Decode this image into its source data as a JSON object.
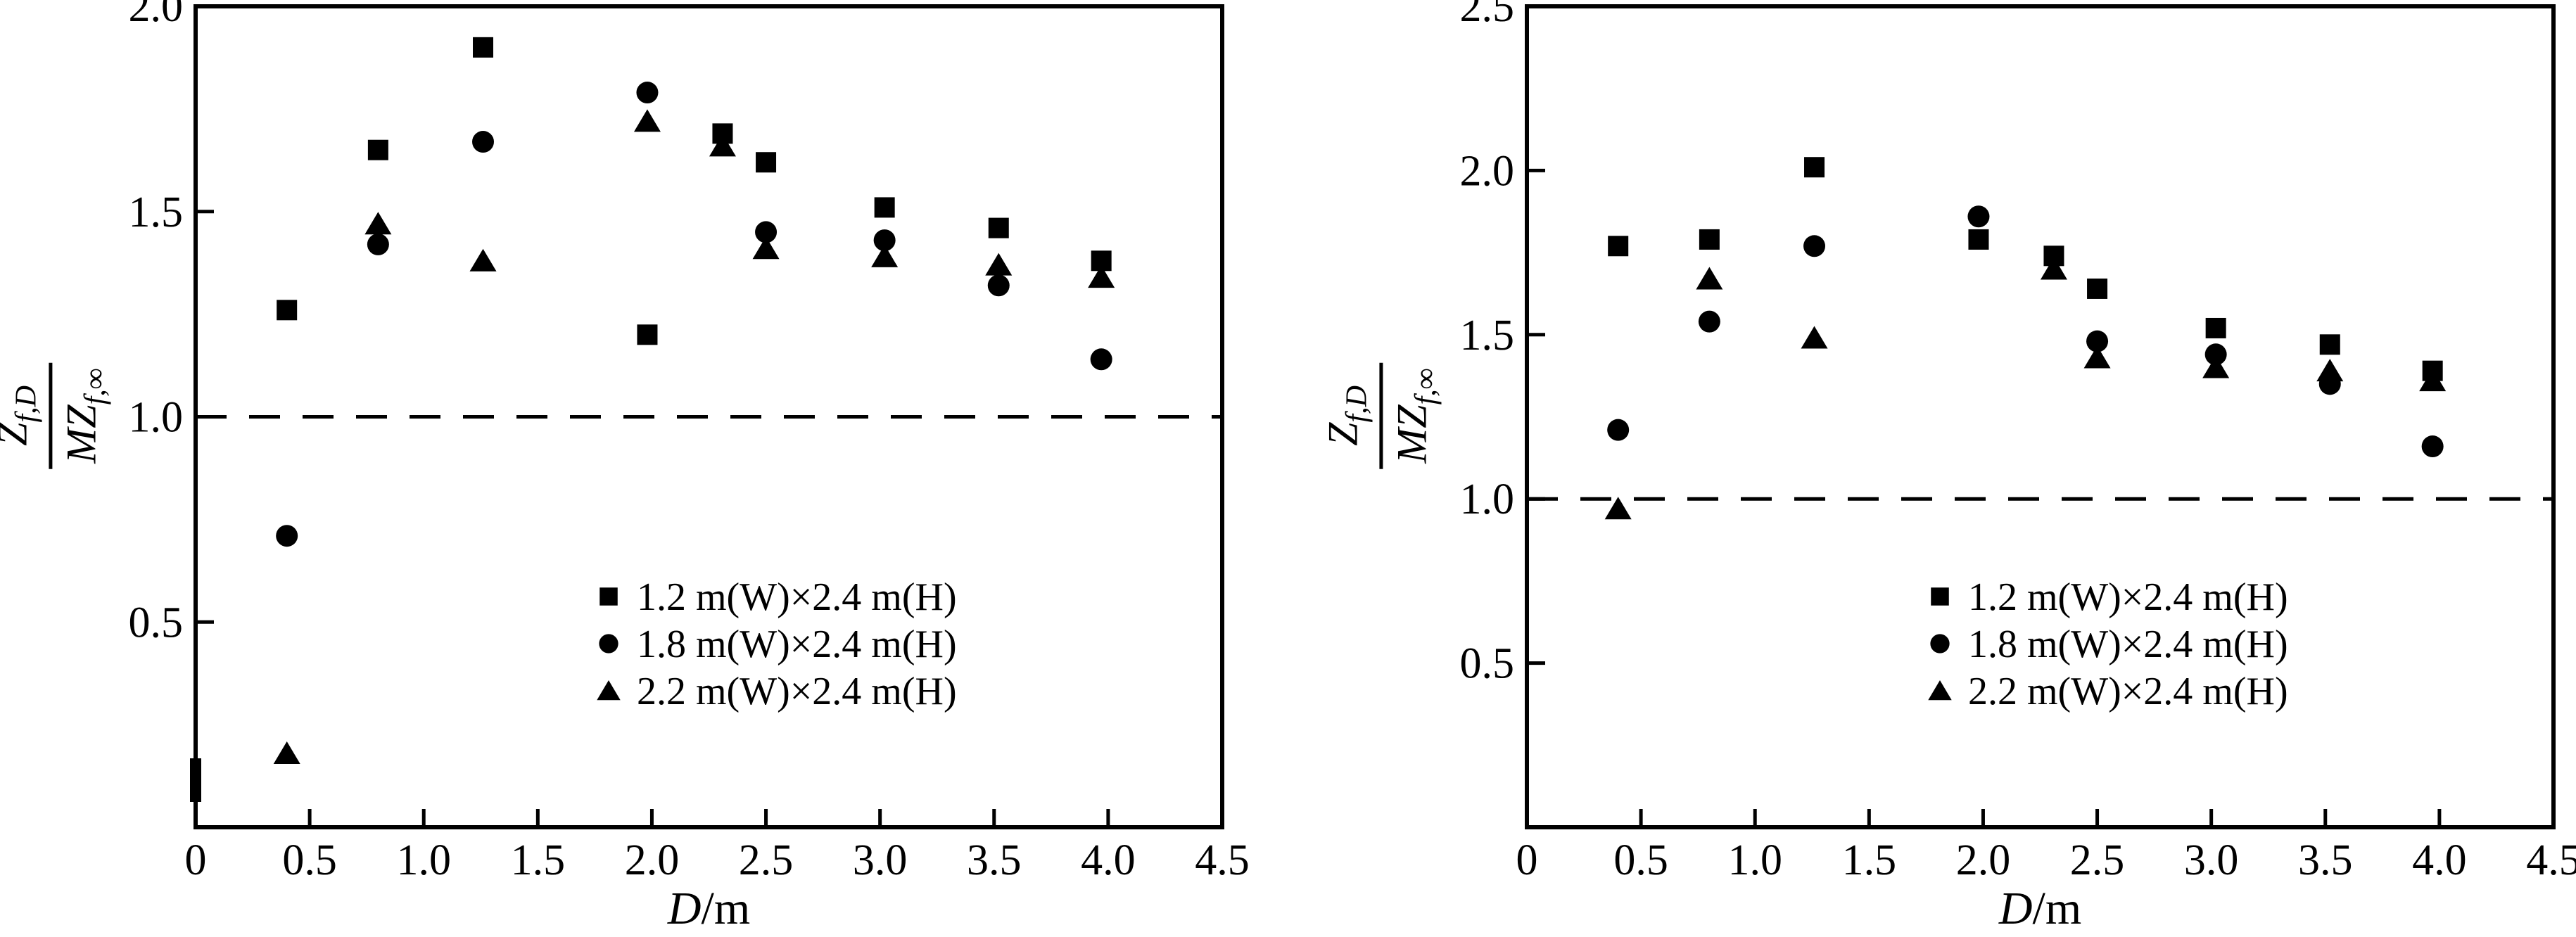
{
  "figure": {
    "background": "#ffffff",
    "marker_color": "#000000",
    "reference_line_style": "dashed"
  },
  "chart_data": [
    {
      "type": "scatter",
      "panel": "left",
      "xlabel": "D/m",
      "xlabel_parts": {
        "var": "D",
        "unit": "/m"
      },
      "ylabel": "Z_f,D / (M Z_f,inf)",
      "ylabel_parts": {
        "numerator_main": "Z",
        "numerator_sub": "f,D",
        "denominator_main": "MZ",
        "denominator_sub": "f,∞"
      },
      "xlim": [
        0,
        4.5
      ],
      "ylim": [
        0,
        2.0
      ],
      "xtick_values": [
        0,
        0.5,
        1.0,
        1.5,
        2.0,
        2.5,
        3.0,
        3.5,
        4.0,
        4.5
      ],
      "xtick_labels": [
        "0",
        "0.5",
        "1.0",
        "1.5",
        "2.0",
        "2.5",
        "3.0",
        "3.5",
        "4.0",
        "4.5"
      ],
      "ytick_values": [
        0.5,
        1.0,
        1.5,
        2.0
      ],
      "ytick_labels": [
        "0.5",
        "1.0",
        "1.5",
        "2.0"
      ],
      "reference_line_y": 1.0,
      "grid": false,
      "legend_position": "lower-center",
      "axis_smudge": true,
      "series": [
        {
          "name": "1.2 m(W)×2.4 m(H)",
          "marker": "square",
          "color": "#000000",
          "points": [
            [
              0.4,
              1.26
            ],
            [
              0.8,
              1.65
            ],
            [
              1.26,
              1.9
            ],
            [
              1.98,
              1.2
            ],
            [
              2.31,
              1.69
            ],
            [
              2.5,
              1.62
            ],
            [
              3.02,
              1.51
            ],
            [
              3.52,
              1.46
            ],
            [
              3.97,
              1.38
            ]
          ]
        },
        {
          "name": "1.8 m(W)×2.4 m(H)",
          "marker": "circle",
          "color": "#000000",
          "points": [
            [
              0.4,
              0.71
            ],
            [
              0.8,
              1.42
            ],
            [
              1.26,
              1.67
            ],
            [
              1.98,
              1.79
            ],
            [
              2.5,
              1.45
            ],
            [
              3.02,
              1.43
            ],
            [
              3.52,
              1.32
            ],
            [
              3.97,
              1.14
            ]
          ]
        },
        {
          "name": "2.2 m(W)×2.4 m(H)",
          "marker": "triangle",
          "color": "#000000",
          "points": [
            [
              0.4,
              0.18
            ],
            [
              0.8,
              1.47
            ],
            [
              1.26,
              1.38
            ],
            [
              1.98,
              1.72
            ],
            [
              2.31,
              1.66
            ],
            [
              2.5,
              1.41
            ],
            [
              3.02,
              1.39
            ],
            [
              3.52,
              1.37
            ],
            [
              3.97,
              1.34
            ]
          ]
        }
      ]
    },
    {
      "type": "scatter",
      "panel": "right",
      "xlabel": "D/m",
      "xlabel_parts": {
        "var": "D",
        "unit": "/m"
      },
      "ylabel": "Z_f,D / (M Z_f,inf)",
      "ylabel_parts": {
        "numerator_main": "Z",
        "numerator_sub": "f,D",
        "denominator_main": "MZ",
        "denominator_sub": "f,∞"
      },
      "xlim": [
        0,
        4.5
      ],
      "ylim": [
        0,
        2.5
      ],
      "xtick_values": [
        0,
        0.5,
        1.0,
        1.5,
        2.0,
        2.5,
        3.0,
        3.5,
        4.0,
        4.5
      ],
      "xtick_labels": [
        "0",
        "0.5",
        "1.0",
        "1.5",
        "2.0",
        "2.5",
        "3.0",
        "3.5",
        "4.0",
        "4.5"
      ],
      "ytick_values": [
        0.5,
        1.0,
        1.5,
        2.0,
        2.5
      ],
      "ytick_labels": [
        "0.5",
        "1.0",
        "1.5",
        "2.0",
        "2.5"
      ],
      "reference_line_y": 1.0,
      "grid": false,
      "legend_position": "lower-center",
      "axis_smudge": false,
      "series": [
        {
          "name": "1.2 m(W)×2.4 m(H)",
          "marker": "square",
          "color": "#000000",
          "points": [
            [
              0.4,
              1.77
            ],
            [
              0.8,
              1.79
            ],
            [
              1.26,
              2.01
            ],
            [
              1.98,
              1.79
            ],
            [
              2.31,
              1.74
            ],
            [
              2.5,
              1.64
            ],
            [
              3.02,
              1.52
            ],
            [
              3.52,
              1.47
            ],
            [
              3.97,
              1.39
            ]
          ]
        },
        {
          "name": "1.8 m(W)×2.4 m(H)",
          "marker": "circle",
          "color": "#000000",
          "points": [
            [
              0.4,
              1.21
            ],
            [
              0.8,
              1.54
            ],
            [
              1.26,
              1.77
            ],
            [
              1.98,
              1.86
            ],
            [
              2.5,
              1.48
            ],
            [
              3.02,
              1.44
            ],
            [
              3.52,
              1.35
            ],
            [
              3.97,
              1.16
            ]
          ]
        },
        {
          "name": "2.2 m(W)×2.4 m(H)",
          "marker": "triangle",
          "color": "#000000",
          "points": [
            [
              0.4,
              0.97
            ],
            [
              0.8,
              1.67
            ],
            [
              1.26,
              1.49
            ],
            [
              2.31,
              1.7
            ],
            [
              2.5,
              1.43
            ],
            [
              3.02,
              1.4
            ],
            [
              3.52,
              1.39
            ],
            [
              3.97,
              1.36
            ]
          ]
        }
      ]
    }
  ]
}
